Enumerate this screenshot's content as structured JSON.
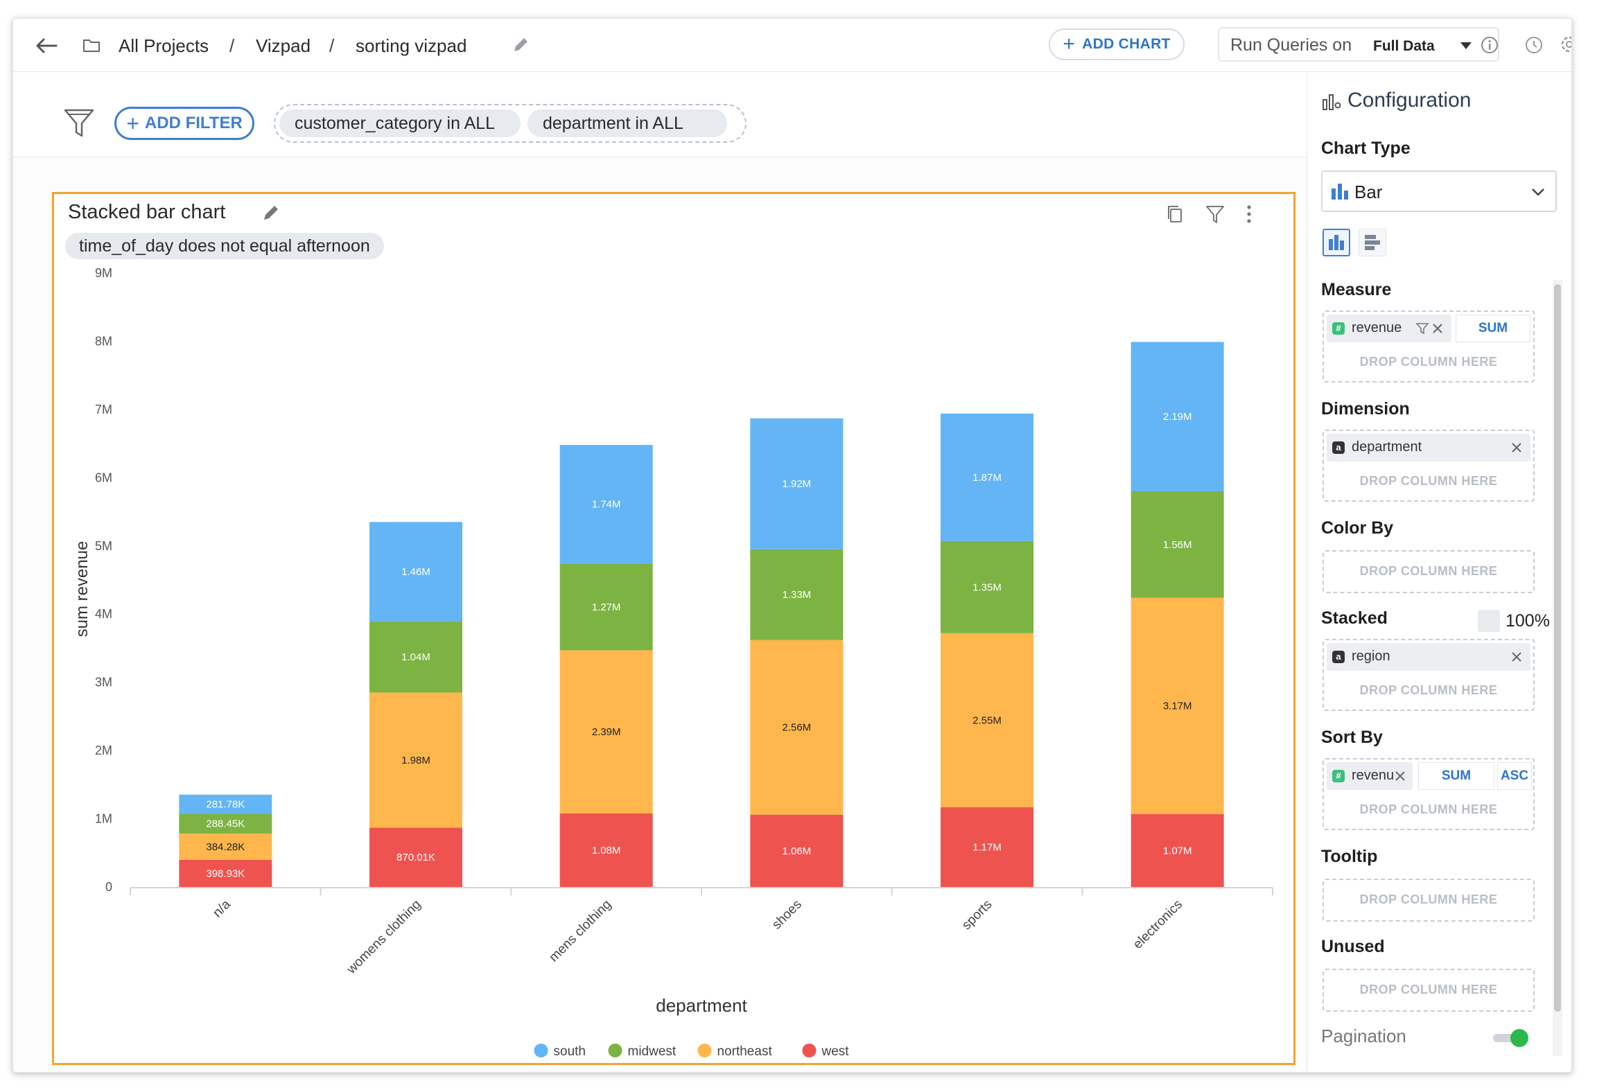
{
  "topbar": {
    "breadcrumbs": [
      "All Projects",
      "Vizpad",
      "sorting vizpad"
    ],
    "separator": "/",
    "add_chart_label": "ADD CHART",
    "run_queries_label": "Run Queries on",
    "run_queries_value": "Full Data"
  },
  "filterbar": {
    "add_filter_label": "ADD FILTER",
    "filters": [
      "customer_category in ALL",
      "department in ALL"
    ]
  },
  "chart_card": {
    "title": "Stacked bar chart",
    "filter_chip": "time_of_day does not equal afternoon"
  },
  "chart_data": {
    "type": "bar",
    "stacked": true,
    "categories": [
      "n/a",
      "womens clothing",
      "mens clothing",
      "shoes",
      "sports",
      "electronics"
    ],
    "series": [
      {
        "name": "west",
        "color": "#ef5350",
        "values": [
          398930,
          870010,
          1080000,
          1060000,
          1170000,
          1070000
        ],
        "labels": [
          "398.93K",
          "870.01K",
          "1.08M",
          "1.06M",
          "1.17M",
          "1.07M"
        ]
      },
      {
        "name": "northeast",
        "color": "#ffb74d",
        "values": [
          384280,
          1980000,
          2390000,
          2560000,
          2550000,
          3170000
        ],
        "labels": [
          "384.28K",
          "1.98M",
          "2.39M",
          "2.56M",
          "2.55M",
          "3.17M"
        ]
      },
      {
        "name": "midwest",
        "color": "#7cb342",
        "values": [
          288450,
          1040000,
          1270000,
          1330000,
          1350000,
          1560000
        ],
        "labels": [
          "288.45K",
          "1.04M",
          "1.27M",
          "1.33M",
          "1.35M",
          "1.56M"
        ]
      },
      {
        "name": "south",
        "color": "#64b5f6",
        "values": [
          281780,
          1460000,
          1740000,
          1920000,
          1870000,
          2190000
        ],
        "labels": [
          "281.78K",
          "1.46M",
          "1.74M",
          "1.92M",
          "1.87M",
          "2.19M"
        ]
      }
    ],
    "legend_order": [
      "south",
      "midwest",
      "northeast",
      "west"
    ],
    "xlabel": "department",
    "ylabel": "sum revenue",
    "ylim": [
      0,
      9000000
    ],
    "yticks": [
      0,
      1000000,
      2000000,
      3000000,
      4000000,
      5000000,
      6000000,
      7000000,
      8000000,
      9000000
    ],
    "ytick_labels": [
      "0",
      "1M",
      "2M",
      "3M",
      "4M",
      "5M",
      "6M",
      "7M",
      "8M",
      "9M"
    ],
    "legend_position": "bottom-center",
    "grid": false
  },
  "panel": {
    "title": "Configuration",
    "chart_type_label": "Chart Type",
    "chart_type_value": "Bar",
    "measure_label": "Measure",
    "measure_column": "revenue",
    "measure_agg": "SUM",
    "dimension_label": "Dimension",
    "dimension_column": "department",
    "color_by_label": "Color By",
    "stacked_label": "Stacked",
    "stacked_percent_label": "100%",
    "stacked_column": "region",
    "sort_by_label": "Sort By",
    "sort_column": "revenue",
    "sort_agg": "SUM",
    "sort_order": "ASC",
    "tooltip_label": "Tooltip",
    "unused_label": "Unused",
    "drop_hint": "DROP COLUMN HERE",
    "pagination_label": "Pagination",
    "pagination_enabled": true
  },
  "colors": {
    "accent": "#3f7fd0",
    "card_border": "#f3a32f",
    "toggle_on": "#2db84d"
  }
}
